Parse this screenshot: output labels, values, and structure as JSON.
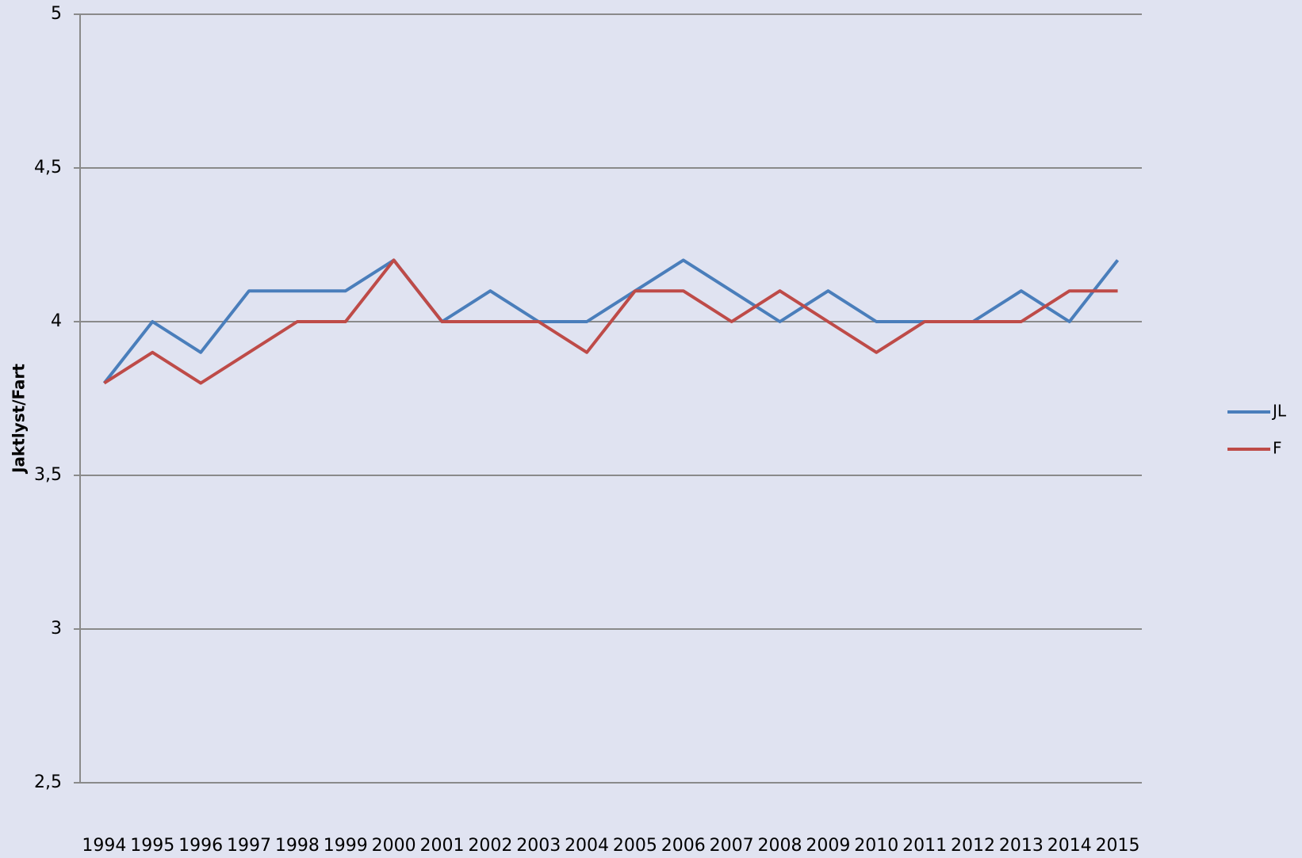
{
  "chart_data": {
    "type": "line",
    "y_label": "Jaktlyst/Fart",
    "categories": [
      "1994",
      "1995",
      "1996",
      "1997",
      "1998",
      "1999",
      "2000",
      "2001",
      "2002",
      "2003",
      "2004",
      "2005",
      "2006",
      "2007",
      "2008",
      "2009",
      "2010",
      "2011",
      "2012",
      "2013",
      "2014",
      "2015"
    ],
    "series": [
      {
        "name": "JL",
        "color": "#4a7ebb",
        "values": [
          3.8,
          4.0,
          3.9,
          4.1,
          4.1,
          4.1,
          4.2,
          4.0,
          4.1,
          4.0,
          4.0,
          4.1,
          4.2,
          4.1,
          4.0,
          4.1,
          4.0,
          4.0,
          4.0,
          4.1,
          4.0,
          4.2
        ]
      },
      {
        "name": "F",
        "color": "#be4b48",
        "values": [
          3.8,
          3.9,
          3.8,
          3.9,
          4.0,
          4.0,
          4.2,
          4.0,
          4.0,
          4.0,
          3.9,
          4.1,
          4.1,
          4.0,
          4.1,
          4.0,
          3.9,
          4.0,
          4.0,
          4.0,
          4.1,
          4.1
        ]
      }
    ],
    "ylim": [
      2.5,
      5
    ],
    "yticks": [
      {
        "value": 2.5,
        "label": "2,5"
      },
      3,
      {
        "value": 3.5,
        "label": "3,5"
      },
      4,
      {
        "value": 4.5,
        "label": "4,5"
      },
      5
    ],
    "grid": true,
    "legend": "right"
  }
}
